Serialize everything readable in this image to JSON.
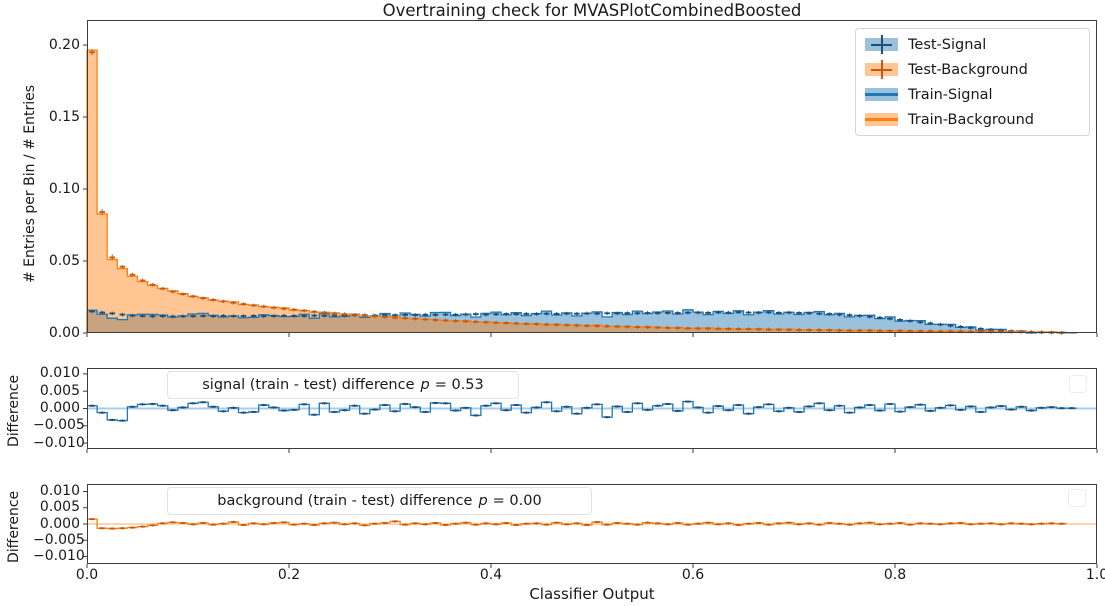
{
  "title": "Overtraining check for MVASPlotCombinedBoosted",
  "colors": {
    "signal": "#1f77b4",
    "signal_dark": "#1f4e79",
    "signal_fill": "rgba(31,119,180,0.45)",
    "signal_light": "#a8cde8",
    "background": "#ff7f0e",
    "background_dark": "#c55a11",
    "background_fill": "rgba(255,127,14,0.45)",
    "background_light": "#ffd6ab",
    "frame": "#3c3c3c"
  },
  "chart_data": [
    {
      "id": "main",
      "type": "bar",
      "subtype": "step-histogram",
      "bins": 100,
      "xlim": [
        0,
        1
      ],
      "ylim": [
        0,
        0.2174
      ],
      "ylabel": "# Entries per Bin / # Entries",
      "grid": false,
      "legend_position": "upper right",
      "xticks": {
        "values": [
          0,
          0.2,
          0.4,
          0.6,
          0.8,
          1.0
        ],
        "labels": []
      },
      "yticks": {
        "values": [
          0.0,
          0.05,
          0.1,
          0.15,
          0.2
        ],
        "labels": [
          "0.00",
          "0.05",
          "0.10",
          "0.15",
          "0.20"
        ]
      },
      "series": [
        {
          "name": "Test-Signal",
          "role": "test",
          "group": "signal",
          "style": "errorbar"
        },
        {
          "name": "Test-Background",
          "role": "test",
          "group": "background",
          "style": "errorbar"
        },
        {
          "name": "Train-Signal",
          "role": "train",
          "group": "signal",
          "style": "stepfilled",
          "derivation": "test_signal_values + signal difference values"
        },
        {
          "name": "Train-Background",
          "role": "train",
          "group": "background",
          "style": "stepfilled",
          "derivation": "test_background_values + background difference values"
        }
      ],
      "test_signal_values": [
        0.015,
        0.0142,
        0.0136,
        0.0128,
        0.0121,
        0.0118,
        0.0116,
        0.0117,
        0.0115,
        0.0116,
        0.0117,
        0.0118,
        0.0117,
        0.0119,
        0.0117,
        0.0118,
        0.0119,
        0.0117,
        0.0118,
        0.012,
        0.0119,
        0.0118,
        0.0121,
        0.012,
        0.0122,
        0.0121,
        0.0123,
        0.0124,
        0.0122,
        0.0125,
        0.0124,
        0.0126,
        0.0125,
        0.0127,
        0.0126,
        0.0128,
        0.0127,
        0.0129,
        0.0131,
        0.0128,
        0.013,
        0.0132,
        0.0131,
        0.0133,
        0.0132,
        0.0134,
        0.0133,
        0.0135,
        0.0134,
        0.0136,
        0.0135,
        0.0137,
        0.0136,
        0.0138,
        0.0137,
        0.0139,
        0.0138,
        0.014,
        0.0139,
        0.0141,
        0.0142,
        0.014,
        0.0143,
        0.0141,
        0.0144,
        0.0142,
        0.0141,
        0.0143,
        0.014,
        0.0142,
        0.0139,
        0.0137,
        0.0134,
        0.0132,
        0.0128,
        0.0124,
        0.0119,
        0.0113,
        0.0106,
        0.0099,
        0.0091,
        0.0083,
        0.0075,
        0.0067,
        0.0059,
        0.0051,
        0.0043,
        0.0036,
        0.0029,
        0.0023,
        0.0018,
        0.0013,
        0.0009,
        0.0006,
        0.0004,
        0.0003,
        0.0001,
        0.0,
        0.0,
        0.0
      ],
      "test_background_values": [
        0.195,
        0.084,
        0.0525,
        0.046,
        0.0405,
        0.0365,
        0.0335,
        0.0308,
        0.0287,
        0.027,
        0.0255,
        0.0242,
        0.023,
        0.022,
        0.021,
        0.0201,
        0.0192,
        0.0184,
        0.0176,
        0.0169,
        0.0162,
        0.0155,
        0.0148,
        0.0142,
        0.0136,
        0.0131,
        0.0126,
        0.0121,
        0.0116,
        0.0111,
        0.0107,
        0.0103,
        0.0099,
        0.0095,
        0.0091,
        0.0088,
        0.0084,
        0.0081,
        0.0078,
        0.0075,
        0.0072,
        0.0069,
        0.0067,
        0.0064,
        0.0062,
        0.0059,
        0.0057,
        0.0055,
        0.0053,
        0.0051,
        0.0049,
        0.0047,
        0.0045,
        0.0044,
        0.0042,
        0.004,
        0.0038,
        0.0036,
        0.0035,
        0.0033,
        0.0032,
        0.0031,
        0.003,
        0.0029,
        0.0028,
        0.0027,
        0.0026,
        0.0025,
        0.0024,
        0.0023,
        0.0022,
        0.0021,
        0.0021,
        0.002,
        0.0019,
        0.0018,
        0.0017,
        0.0017,
        0.0016,
        0.0015,
        0.0015,
        0.0014,
        0.0013,
        0.0013,
        0.0012,
        0.0012,
        0.0011,
        0.001,
        0.001,
        0.0009,
        0.0009,
        0.0008,
        0.0008,
        0.0007,
        0.0006,
        0.0005,
        0.0003,
        0.0,
        0.0,
        0.0
      ]
    },
    {
      "id": "signal_difference",
      "type": "line",
      "subtype": "step-difference",
      "bins": 100,
      "xlim": [
        0,
        1
      ],
      "ylim": [
        -0.0117,
        0.0117
      ],
      "ylabel": "Difference",
      "annotation": {
        "text": "signal (train - test) difference",
        "p_symbol": "p",
        "p_value": "= 0.53"
      },
      "xticks": {
        "values": [
          0,
          0.2,
          0.4,
          0.6,
          0.8,
          1.0
        ],
        "labels": []
      },
      "yticks": {
        "values": [
          0.01,
          0.005,
          0.0,
          -0.005,
          -0.01
        ],
        "labels": [
          "0.010",
          "0.005",
          "0.000",
          "−0.005",
          "−0.010"
        ]
      },
      "values": [
        0.0008,
        -0.0012,
        -0.0033,
        -0.0035,
        0.0005,
        0.0012,
        0.0013,
        0.0008,
        -0.0005,
        0.0003,
        0.0015,
        0.0018,
        0.0005,
        -0.0008,
        0.0002,
        -0.0012,
        -0.001,
        0.001,
        0.0003,
        -0.0006,
        -0.0004,
        0.0012,
        -0.0018,
        0.0015,
        -0.001,
        -0.0005,
        0.0008,
        -0.0015,
        -0.0003,
        0.001,
        -0.0008,
        0.0013,
        0.0004,
        -0.001,
        0.0016,
        0.0015,
        -0.0006,
        0.0002,
        -0.002,
        0.0008,
        0.0015,
        -0.0005,
        0.001,
        -0.0012,
        0.0003,
        0.0018,
        -0.0008,
        0.0005,
        -0.0015,
        0.0002,
        0.0012,
        -0.0025,
        0.0006,
        -0.001,
        0.0015,
        -0.0004,
        0.0008,
        0.0013,
        -0.0007,
        0.002,
        0.0003,
        -0.0012,
        0.0007,
        -0.0005,
        0.001,
        -0.0015,
        0.0004,
        0.0012,
        -0.0008,
        0.0002,
        -0.001,
        0.0006,
        0.0015,
        -0.0005,
        0.0008,
        -0.0012,
        0.0003,
        0.001,
        -0.0006,
        0.0013,
        -0.0009,
        0.0004,
        0.0011,
        -0.0007,
        0.0002,
        0.0009,
        -0.0004,
        0.0006,
        -0.001,
        0.0003,
        0.0007,
        -0.0003,
        0.0005,
        -0.0006,
        0.0002,
        0.0004,
        0.0001,
        0.0001,
        0.0,
        0.0
      ]
    },
    {
      "id": "background_difference",
      "type": "line",
      "subtype": "step-difference",
      "bins": 100,
      "xlim": [
        0,
        1
      ],
      "ylim": [
        -0.0123,
        0.0123
      ],
      "ylabel": "Difference",
      "xlabel": "Classifier Output",
      "annotation": {
        "text": "background (train - test) difference",
        "p_symbol": "p",
        "p_value": "= 0.00"
      },
      "xticks": {
        "values": [
          0,
          0.2,
          0.4,
          0.6,
          0.8,
          1.0
        ],
        "labels": [
          "0.0",
          "0.2",
          "0.4",
          "0.6",
          "0.8",
          "1.0"
        ]
      },
      "yticks": {
        "values": [
          0.01,
          0.005,
          0.0,
          -0.005,
          -0.01
        ],
        "labels": [
          "0.010",
          "0.005",
          "0.000",
          "−0.005",
          "−0.010"
        ]
      },
      "values": [
        0.0015,
        -0.0013,
        -0.0014,
        -0.0013,
        -0.0011,
        -0.0008,
        -0.0004,
        0.0002,
        0.0005,
        0.0003,
        -0.0001,
        0.0003,
        -0.0002,
        0.0001,
        0.0006,
        -0.0003,
        0.0002,
        -0.0001,
        0.0003,
        0.0005,
        -0.0002,
        0.0001,
        -0.0003,
        0.0002,
        0.0004,
        -0.0001,
        0.0002,
        -0.0004,
        0.0001,
        0.0003,
        0.0008,
        -0.0002,
        0.0002,
        -0.0001,
        0.0003,
        -0.0003,
        0.0001,
        0.0004,
        -0.0002,
        0.0002,
        -0.0001,
        0.0003,
        -0.0003,
        0.0001,
        0.0002,
        -0.0002,
        0.0004,
        -0.0001,
        0.0002,
        -0.0003,
        0.0006,
        -0.0002,
        0.0003,
        0.0001,
        -0.0002,
        0.0004,
        0.0002,
        -0.0001,
        0.0003,
        -0.0002,
        0.0001,
        0.0004,
        -0.0001,
        0.0002,
        -0.0003,
        0.0001,
        0.0003,
        -0.0002,
        0.0002,
        0.0004,
        -0.0001,
        0.0002,
        -0.0002,
        0.0003,
        0.0001,
        -0.0002,
        0.0002,
        0.0004,
        -0.0001,
        0.0001,
        0.0003,
        -0.0002,
        0.0002,
        0.0001,
        -0.0001,
        0.0002,
        0.0003,
        -0.0001,
        0.0001,
        0.0002,
        -0.0001,
        0.0002,
        0.0001,
        -0.0001,
        0.0001,
        0.0002,
        0.0001,
        0.0,
        0.0,
        0.0
      ]
    }
  ]
}
